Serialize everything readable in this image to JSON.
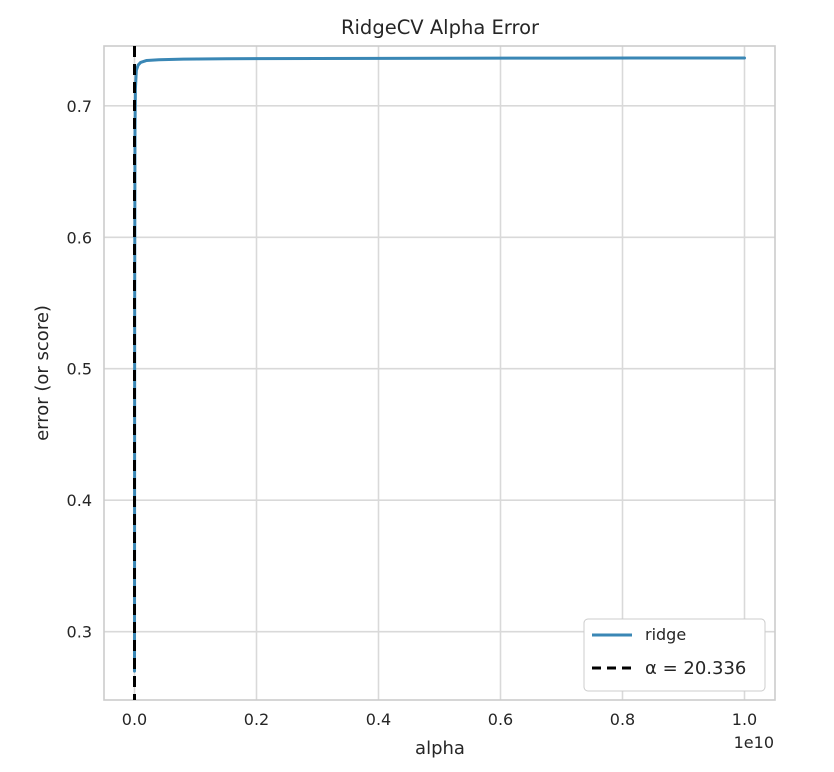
{
  "colors": {
    "ridge_line": "#3a87b5",
    "alpha_line": "#000000",
    "grid": "#d9d9d9",
    "spine": "#cccccc",
    "text": "#262626"
  },
  "chart_data": {
    "type": "line",
    "title": "RidgeCV Alpha Error",
    "xlabel": "alpha",
    "ylabel": "error (or score)",
    "x_offset_text": "1e10",
    "x_ticks": [
      0.0,
      0.2,
      0.4,
      0.6,
      0.8,
      1.0
    ],
    "x_tick_labels": [
      "0.0",
      "0.2",
      "0.4",
      "0.6",
      "0.8",
      "1.0"
    ],
    "y_ticks": [
      0.3,
      0.4,
      0.5,
      0.6,
      0.7
    ],
    "y_tick_labels": [
      "0.3",
      "0.4",
      "0.5",
      "0.6",
      "0.7"
    ],
    "xlim": [
      -0.05,
      1.05
    ],
    "ylim": [
      0.248,
      0.7455
    ],
    "grid": true,
    "legend_placement": "lower-right",
    "series": [
      {
        "name": "ridge",
        "x": [
          0.0,
          0.0003,
          0.0008,
          0.0015,
          0.003,
          0.006,
          0.01,
          0.02,
          0.04,
          0.08,
          0.15,
          0.3,
          0.5,
          0.7,
          1.0
        ],
        "y": [
          0.27,
          0.55,
          0.68,
          0.713,
          0.727,
          0.731,
          0.733,
          0.7345,
          0.735,
          0.7355,
          0.7358,
          0.736,
          0.7362,
          0.7363,
          0.7364
        ]
      }
    ],
    "vline": {
      "x": 0.0,
      "label": "α = 20.336"
    }
  }
}
